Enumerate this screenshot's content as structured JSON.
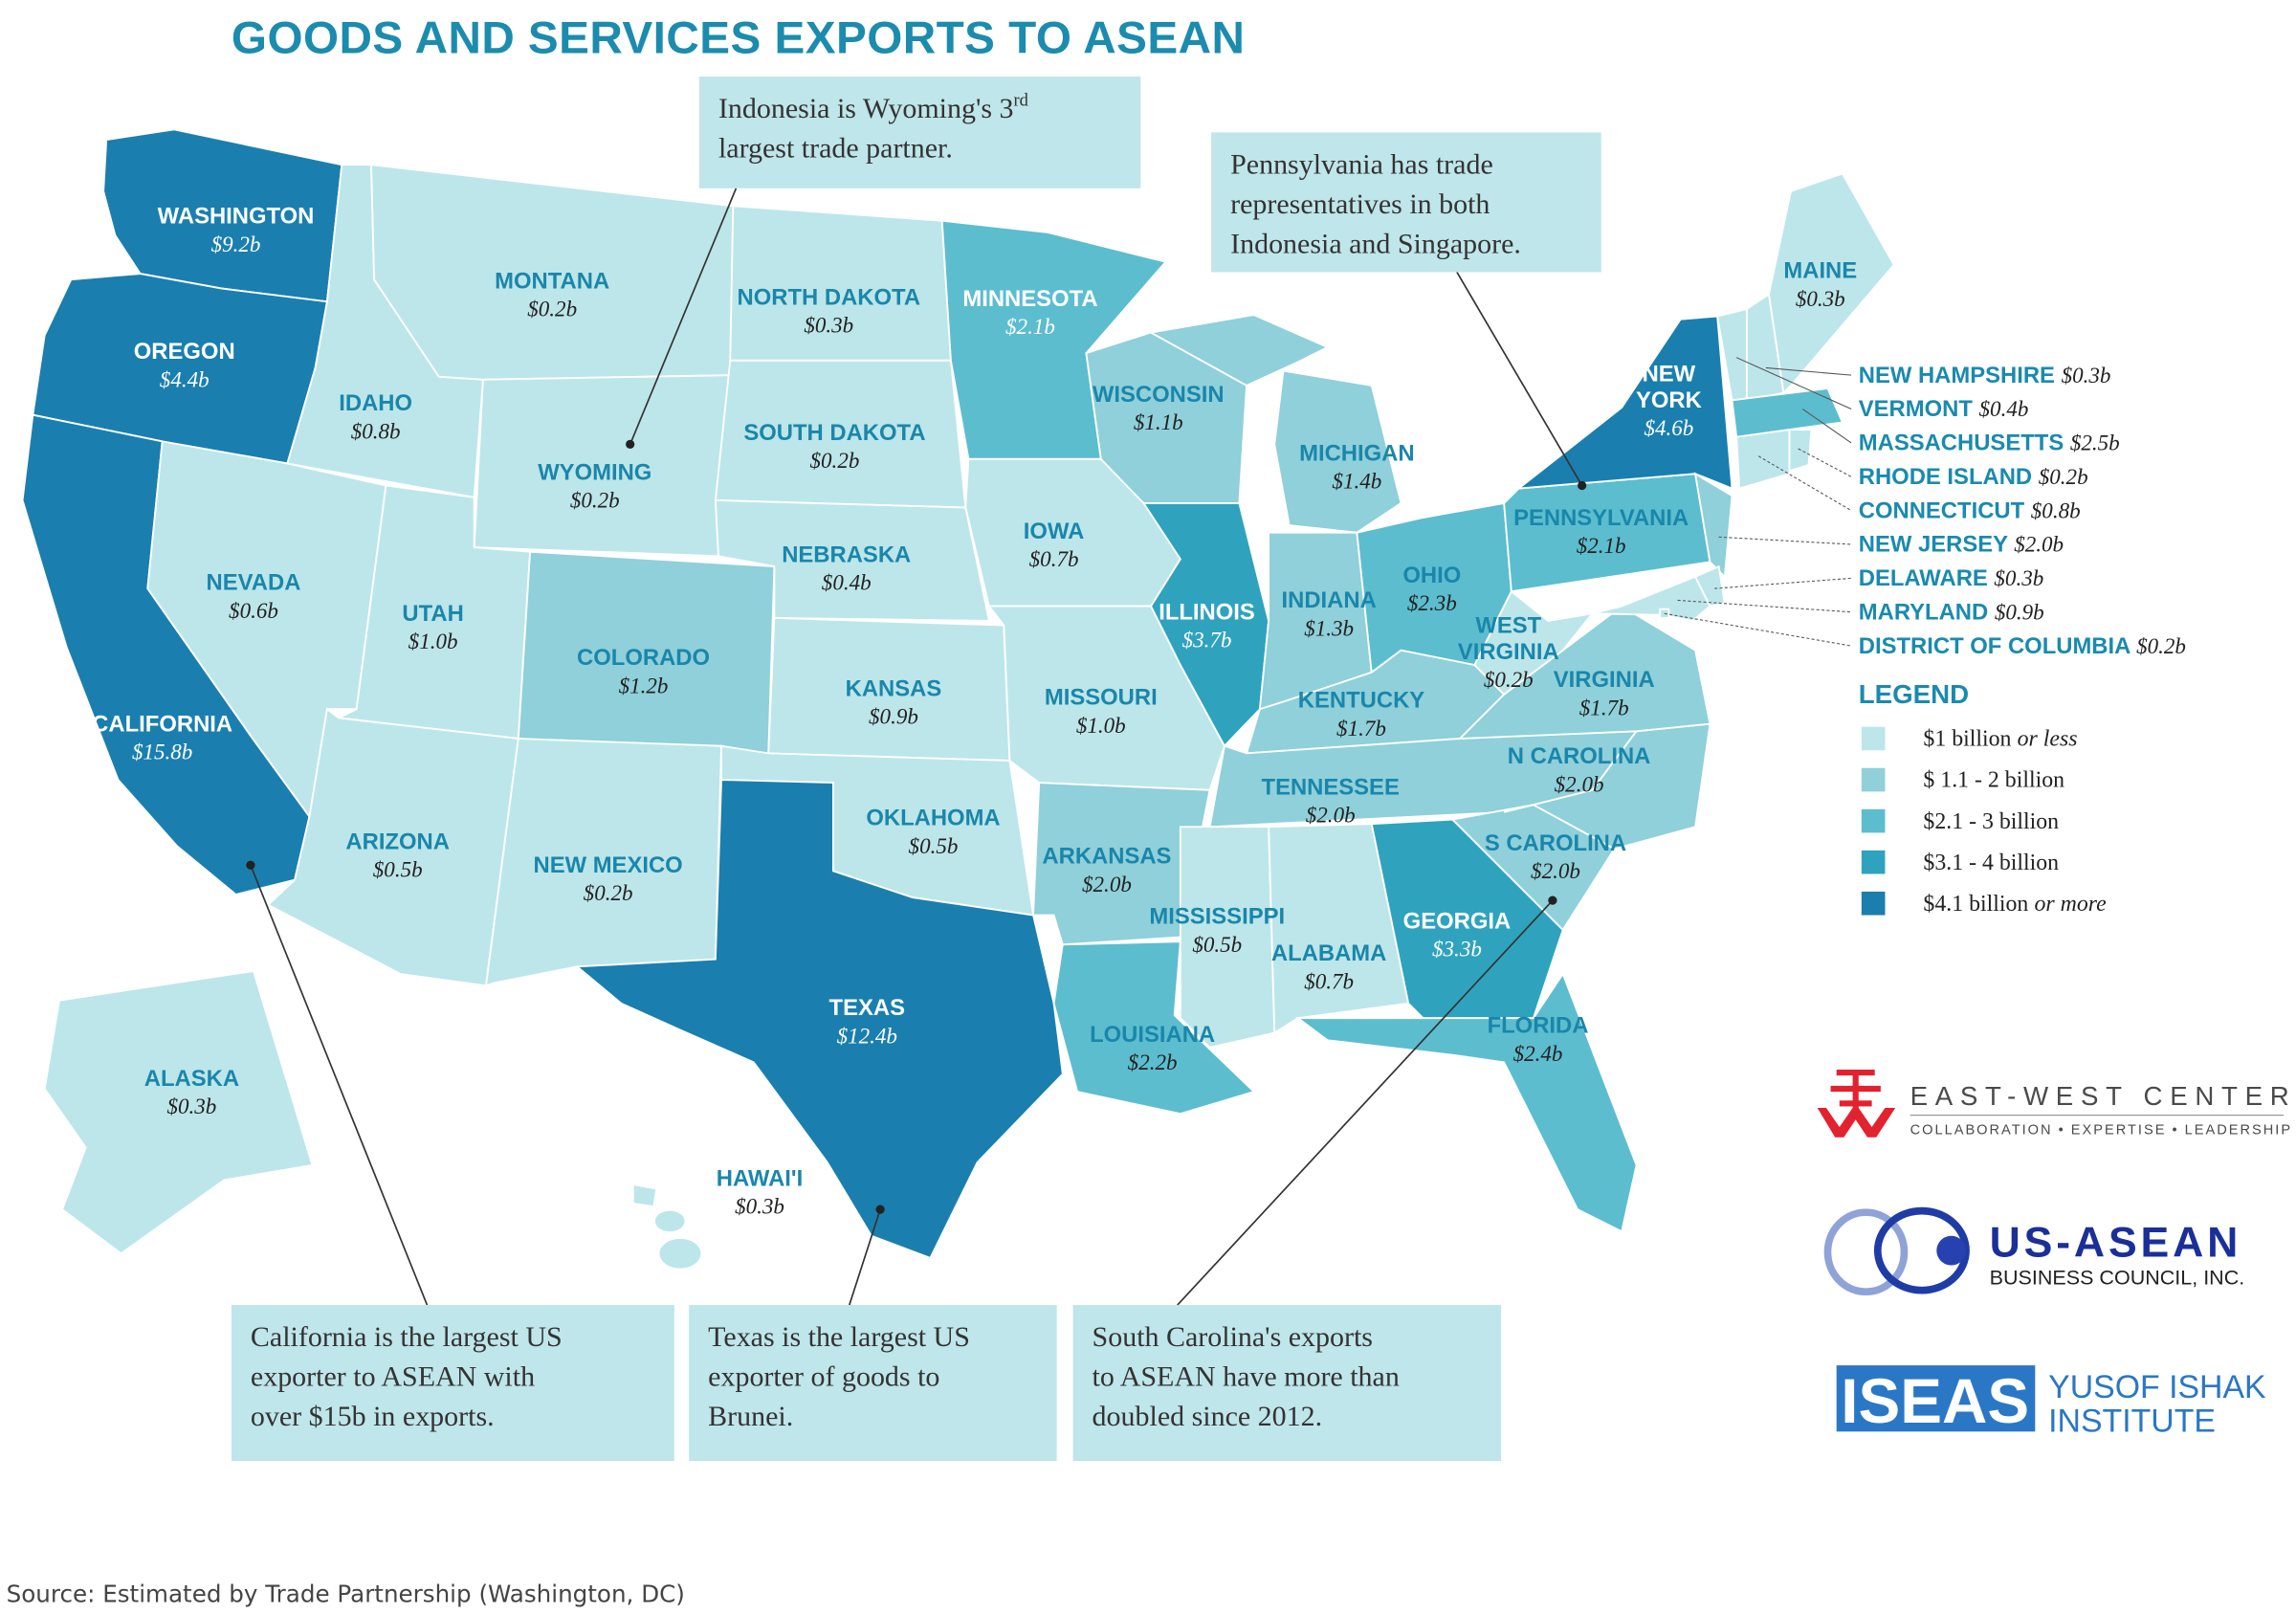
{
  "title": "GOODS AND SERVICES EXPORTS TO ASEAN",
  "colors": {
    "title": "#1b8cae",
    "tiers": [
      "#bde6ea",
      "#8fd0da",
      "#5cbdcf",
      "#2fa3be",
      "#1a7fae"
    ],
    "callout_bg": "#bfe6ea"
  },
  "legend": {
    "title": "LEGEND",
    "items": [
      {
        "amount": "$1 billion",
        "qualifier": "or less"
      },
      {
        "amount": "$ 1.1 - 2 billion",
        "qualifier": ""
      },
      {
        "amount": "$2.1 - 3 billion",
        "qualifier": ""
      },
      {
        "amount": "$3.1 - 4 billion",
        "qualifier": ""
      },
      {
        "amount": "$4.1 billion",
        "qualifier": "or more"
      }
    ]
  },
  "states": [
    {
      "id": "WA",
      "name": "WASHINGTON",
      "value": "$9.2b",
      "tier": 5
    },
    {
      "id": "OR",
      "name": "OREGON",
      "value": "$4.4b",
      "tier": 5
    },
    {
      "id": "CA",
      "name": "CALIFORNIA",
      "value": "$15.8b",
      "tier": 5
    },
    {
      "id": "ID",
      "name": "IDAHO",
      "value": "$0.8b",
      "tier": 1
    },
    {
      "id": "NV",
      "name": "NEVADA",
      "value": "$0.6b",
      "tier": 1
    },
    {
      "id": "MT",
      "name": "MONTANA",
      "value": "$0.2b",
      "tier": 1
    },
    {
      "id": "WY",
      "name": "WYOMING",
      "value": "$0.2b",
      "tier": 1
    },
    {
      "id": "UT",
      "name": "UTAH",
      "value": "$1.0b",
      "tier": 1
    },
    {
      "id": "AZ",
      "name": "ARIZONA",
      "value": "$0.5b",
      "tier": 1
    },
    {
      "id": "CO",
      "name": "COLORADO",
      "value": "$1.2b",
      "tier": 2
    },
    {
      "id": "NM",
      "name": "NEW MEXICO",
      "value": "$0.2b",
      "tier": 1
    },
    {
      "id": "ND",
      "name": "NORTH DAKOTA",
      "value": "$0.3b",
      "tier": 1
    },
    {
      "id": "SD",
      "name": "SOUTH DAKOTA",
      "value": "$0.2b",
      "tier": 1
    },
    {
      "id": "NE",
      "name": "NEBRASKA",
      "value": "$0.4b",
      "tier": 1
    },
    {
      "id": "KS",
      "name": "KANSAS",
      "value": "$0.9b",
      "tier": 1
    },
    {
      "id": "OK",
      "name": "OKLAHOMA",
      "value": "$0.5b",
      "tier": 1
    },
    {
      "id": "TX",
      "name": "TEXAS",
      "value": "$12.4b",
      "tier": 5
    },
    {
      "id": "MN",
      "name": "MINNESOTA",
      "value": "$2.1b",
      "tier": 3
    },
    {
      "id": "IA",
      "name": "IOWA",
      "value": "$0.7b",
      "tier": 1
    },
    {
      "id": "MO",
      "name": "MISSOURI",
      "value": "$1.0b",
      "tier": 1
    },
    {
      "id": "AR",
      "name": "ARKANSAS",
      "value": "$2.0b",
      "tier": 2
    },
    {
      "id": "LA",
      "name": "LOUISIANA",
      "value": "$2.2b",
      "tier": 3
    },
    {
      "id": "WI",
      "name": "WISCONSIN",
      "value": "$1.1b",
      "tier": 2
    },
    {
      "id": "IL",
      "name": "ILLINOIS",
      "value": "$3.7b",
      "tier": 4
    },
    {
      "id": "MI",
      "name": "MICHIGAN",
      "value": "$1.4b",
      "tier": 2
    },
    {
      "id": "IN",
      "name": "INDIANA",
      "value": "$1.3b",
      "tier": 2
    },
    {
      "id": "OH",
      "name": "OHIO",
      "value": "$2.3b",
      "tier": 3
    },
    {
      "id": "KY",
      "name": "KENTUCKY",
      "value": "$1.7b",
      "tier": 2
    },
    {
      "id": "TN",
      "name": "TENNESSEE",
      "value": "$2.0b",
      "tier": 2
    },
    {
      "id": "MS",
      "name": "MISSISSIPPI",
      "value": "$0.5b",
      "tier": 1
    },
    {
      "id": "AL",
      "name": "ALABAMA",
      "value": "$0.7b",
      "tier": 1
    },
    {
      "id": "GA",
      "name": "GEORGIA",
      "value": "$3.3b",
      "tier": 4
    },
    {
      "id": "FL",
      "name": "FLORIDA",
      "value": "$2.4b",
      "tier": 3
    },
    {
      "id": "SC",
      "name": "S CAROLINA",
      "value": "$2.0b",
      "tier": 2
    },
    {
      "id": "NC",
      "name": "N CAROLINA",
      "value": "$2.0b",
      "tier": 2
    },
    {
      "id": "VA",
      "name": "VIRGINIA",
      "value": "$1.7b",
      "tier": 2
    },
    {
      "id": "WV",
      "name": "WEST VIRGINIA",
      "value": "$0.2b",
      "tier": 1
    },
    {
      "id": "PA",
      "name": "PENNSYLVANIA",
      "value": "$2.1b",
      "tier": 3
    },
    {
      "id": "NY",
      "name": "NEW YORK",
      "value": "$4.6b",
      "tier": 5
    },
    {
      "id": "ME",
      "name": "MAINE",
      "value": "$0.3b",
      "tier": 1
    },
    {
      "id": "AK",
      "name": "ALASKA",
      "value": "$0.3b",
      "tier": 1
    },
    {
      "id": "HI",
      "name": "HAWAI'I",
      "value": "$0.3b",
      "tier": 1
    }
  ],
  "small_states": [
    {
      "id": "NH",
      "name": "NEW HAMPSHIRE",
      "value": "$0.3b",
      "tier": 1
    },
    {
      "id": "VT",
      "name": "VERMONT",
      "value": "$0.4b",
      "tier": 1
    },
    {
      "id": "MA",
      "name": "MASSACHUSETTS",
      "value": "$2.5b",
      "tier": 3
    },
    {
      "id": "RI",
      "name": "RHODE ISLAND",
      "value": "$0.2b",
      "tier": 1
    },
    {
      "id": "CT",
      "name": "CONNECTICUT",
      "value": "$0.8b",
      "tier": 1
    },
    {
      "id": "NJ",
      "name": "NEW JERSEY",
      "value": "$2.0b",
      "tier": 2
    },
    {
      "id": "DE",
      "name": "DELAWARE",
      "value": "$0.3b",
      "tier": 1
    },
    {
      "id": "MD",
      "name": "MARYLAND",
      "value": "$0.9b",
      "tier": 1
    },
    {
      "id": "DC",
      "name": "DISTRICT OF COLUMBIA",
      "value": "$0.2b",
      "tier": 1
    }
  ],
  "callouts": [
    {
      "id": "wyoming",
      "lines": [
        "Indonesia is Wyoming's 3",
        "largest trade partner."
      ],
      "sup": "rd"
    },
    {
      "id": "pennsylvania",
      "lines": [
        "Pennsylvania has trade",
        "representatives in both",
        "Indonesia and Singapore."
      ]
    },
    {
      "id": "california",
      "lines": [
        "California is the largest US",
        "exporter to ASEAN with",
        "over $15b in exports."
      ]
    },
    {
      "id": "texas",
      "lines": [
        "Texas is the largest US",
        "exporter of goods to",
        "Brunei."
      ]
    },
    {
      "id": "south-carolina",
      "lines": [
        "South Carolina's exports",
        "to ASEAN have more than",
        "doubled since 2012."
      ]
    }
  ],
  "logos": {
    "ewc": {
      "name": "EAST-WEST CENTER",
      "tagline": "COLLABORATION • EXPERTISE • LEADERSHIP"
    },
    "usasean": {
      "name": "US-ASEAN",
      "sub": "BUSINESS COUNCIL, INC."
    },
    "iseas": {
      "mark": "ISEAS",
      "line1": "YUSOF ISHAK",
      "line2": "INSTITUTE"
    }
  },
  "source": "Source: Estimated by Trade Partnership (Washington, DC)"
}
